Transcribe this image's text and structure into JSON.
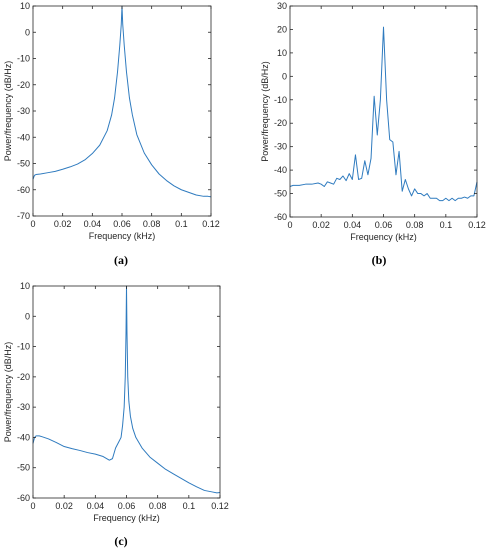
{
  "chart_data": [
    {
      "panel": "(a)",
      "type": "line",
      "xlabel": "Frequency (kHz)",
      "ylabel": "Power/frequency (dB/Hz)",
      "xlim": [
        0,
        0.12
      ],
      "ylim": [
        -70,
        10
      ],
      "xticks": [
        0,
        0.02,
        0.04,
        0.06,
        0.08,
        0.1,
        0.12
      ],
      "xtick_labels": [
        "0",
        "0.02",
        "0.04",
        "0.06",
        "0.08",
        "0.1",
        "0.12"
      ],
      "yticks": [
        -70,
        -60,
        -50,
        -40,
        -30,
        -20,
        -10,
        0,
        10
      ],
      "ytick_labels": [
        "-70",
        "-60",
        "-50",
        "-40",
        "-30",
        "-20",
        "-10",
        "0",
        "10"
      ],
      "grid": false,
      "series": [
        {
          "color": "#2f7bbf",
          "x": [
            0,
            0.001,
            0.002,
            0.005,
            0.01,
            0.015,
            0.02,
            0.025,
            0.03,
            0.035,
            0.04,
            0.045,
            0.05,
            0.053,
            0.055,
            0.057,
            0.0585,
            0.0595,
            0.06,
            0.0605,
            0.0615,
            0.063,
            0.065,
            0.067,
            0.07,
            0.075,
            0.08,
            0.085,
            0.09,
            0.095,
            0.1,
            0.105,
            0.11,
            0.115,
            0.118,
            0.12
          ],
          "y": [
            -56,
            -54.5,
            -54.2,
            -54,
            -53.5,
            -53,
            -52.2,
            -51.3,
            -50.2,
            -48.6,
            -46.2,
            -43,
            -37.5,
            -31.5,
            -25,
            -15,
            -5,
            3,
            10,
            3,
            -5,
            -15,
            -25,
            -31.5,
            -39,
            -46,
            -50.5,
            -54,
            -56.5,
            -58.5,
            -60,
            -61,
            -62,
            -62.5,
            -62.5,
            -62.7
          ]
        }
      ]
    },
    {
      "panel": "(b)",
      "type": "line",
      "xlabel": "Frequency (kHz)",
      "ylabel": "Power/frequency (dB/Hz)",
      "xlim": [
        0,
        0.12
      ],
      "ylim": [
        -60,
        30
      ],
      "xticks": [
        0,
        0.02,
        0.04,
        0.06,
        0.08,
        0.1,
        0.12
      ],
      "xtick_labels": [
        "0",
        "0.02",
        "0.04",
        "0.06",
        "0.08",
        "0.1",
        "0.12"
      ],
      "yticks": [
        -60,
        -50,
        -40,
        -30,
        -20,
        -10,
        0,
        10,
        20,
        30
      ],
      "ytick_labels": [
        "-60",
        "-50",
        "-40",
        "-30",
        "-20",
        "-10",
        "0",
        "10",
        "20",
        "30"
      ],
      "grid": false,
      "series": [
        {
          "color": "#2f7bbf",
          "x": [
            0,
            0.002,
            0.006,
            0.01,
            0.014,
            0.018,
            0.02,
            0.022,
            0.024,
            0.026,
            0.028,
            0.03,
            0.032,
            0.034,
            0.036,
            0.038,
            0.04,
            0.042,
            0.044,
            0.046,
            0.048,
            0.05,
            0.052,
            0.054,
            0.056,
            0.058,
            0.06,
            0.062,
            0.064,
            0.066,
            0.068,
            0.07,
            0.072,
            0.074,
            0.076,
            0.078,
            0.08,
            0.082,
            0.084,
            0.086,
            0.088,
            0.09,
            0.092,
            0.094,
            0.096,
            0.098,
            0.1,
            0.102,
            0.104,
            0.106,
            0.108,
            0.11,
            0.112,
            0.114,
            0.116,
            0.118,
            0.12
          ],
          "y": [
            -47,
            -46.5,
            -46.5,
            -46,
            -46,
            -45.5,
            -46,
            -47,
            -45,
            -45.5,
            -46,
            -43.5,
            -44,
            -42.5,
            -44.5,
            -41.5,
            -44,
            -33.5,
            -44,
            -43.5,
            -36,
            -42,
            -35,
            -8.5,
            -25,
            -10,
            21,
            -10,
            -27,
            -28,
            -42,
            -32,
            -49,
            -44,
            -48,
            -51,
            -48,
            -50,
            -50,
            -51,
            -50,
            -52,
            -52,
            -52,
            -53,
            -53,
            -52,
            -53,
            -52,
            -53,
            -52,
            -52,
            -51.5,
            -52,
            -51,
            -51,
            -45
          ]
        }
      ]
    },
    {
      "panel": "(c)",
      "type": "line",
      "xlabel": "Frequency (kHz)",
      "ylabel": "Power/frequency (dB/Hz)",
      "xlim": [
        0,
        0.12
      ],
      "ylim": [
        -60,
        10
      ],
      "xticks": [
        0,
        0.02,
        0.04,
        0.06,
        0.08,
        0.1,
        0.12
      ],
      "xtick_labels": [
        "0",
        "0.02",
        "0.04",
        "0.06",
        "0.08",
        "0.1",
        "0.12"
      ],
      "yticks": [
        -60,
        -50,
        -40,
        -30,
        -20,
        -10,
        0,
        10
      ],
      "ytick_labels": [
        "-60",
        "-50",
        "-40",
        "-30",
        "-20",
        "-10",
        "0",
        "10"
      ],
      "grid": false,
      "series": [
        {
          "color": "#2f7bbf",
          "x": [
            0,
            0.001,
            0.002,
            0.004,
            0.006,
            0.01,
            0.015,
            0.02,
            0.025,
            0.03,
            0.035,
            0.04,
            0.045,
            0.049,
            0.051,
            0.053,
            0.055,
            0.0565,
            0.0575,
            0.0585,
            0.0592,
            0.0597,
            0.06,
            0.0603,
            0.0608,
            0.0615,
            0.0625,
            0.064,
            0.066,
            0.07,
            0.075,
            0.08,
            0.085,
            0.09,
            0.095,
            0.1,
            0.105,
            0.11,
            0.115,
            0.118,
            0.12
          ],
          "y": [
            -42,
            -40,
            -39.5,
            -39.5,
            -39.8,
            -40.5,
            -41.7,
            -43,
            -43.7,
            -44.3,
            -45,
            -45.5,
            -46.3,
            -47.5,
            -47,
            -43.5,
            -41.5,
            -40,
            -36,
            -30,
            -20,
            -5,
            10,
            -5,
            -20,
            -28,
            -33,
            -37,
            -40,
            -43.5,
            -46.5,
            -48.5,
            -50.5,
            -52,
            -53.5,
            -55,
            -56.3,
            -57.5,
            -58,
            -58.3,
            -58.2
          ]
        }
      ]
    }
  ],
  "panel_labels": [
    "(a)",
    "(b)",
    "(c)"
  ]
}
